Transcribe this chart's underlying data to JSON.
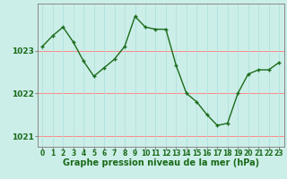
{
  "x": [
    0,
    1,
    2,
    3,
    4,
    5,
    6,
    7,
    8,
    9,
    10,
    11,
    12,
    13,
    14,
    15,
    16,
    17,
    18,
    19,
    20,
    21,
    22,
    23
  ],
  "y": [
    1023.1,
    1023.35,
    1023.55,
    1023.2,
    1022.75,
    1022.4,
    1022.6,
    1022.8,
    1023.1,
    1023.8,
    1023.55,
    1023.5,
    1023.5,
    1022.65,
    1022.0,
    1021.8,
    1021.5,
    1021.25,
    1021.3,
    1022.0,
    1022.45,
    1022.55,
    1022.55,
    1022.72
  ],
  "line_color": "#1a6b1a",
  "marker_color": "#1a6b1a",
  "bg_color": "#cceee8",
  "grid_h_color": "#ff8888",
  "grid_v_color": "#aadddd",
  "axis_color": "#1a6b1a",
  "border_color": "#888888",
  "ylabel_ticks": [
    1021,
    1022,
    1023
  ],
  "xlabel": "Graphe pression niveau de la mer (hPa)",
  "xlim_min": -0.5,
  "xlim_max": 23.5,
  "ylim_min": 1020.75,
  "ylim_max": 1024.1,
  "label_fontsize": 7,
  "tick_fontsize": 5.5,
  "ytick_fontsize": 6.5,
  "linewidth": 1.0,
  "markersize": 3.5
}
